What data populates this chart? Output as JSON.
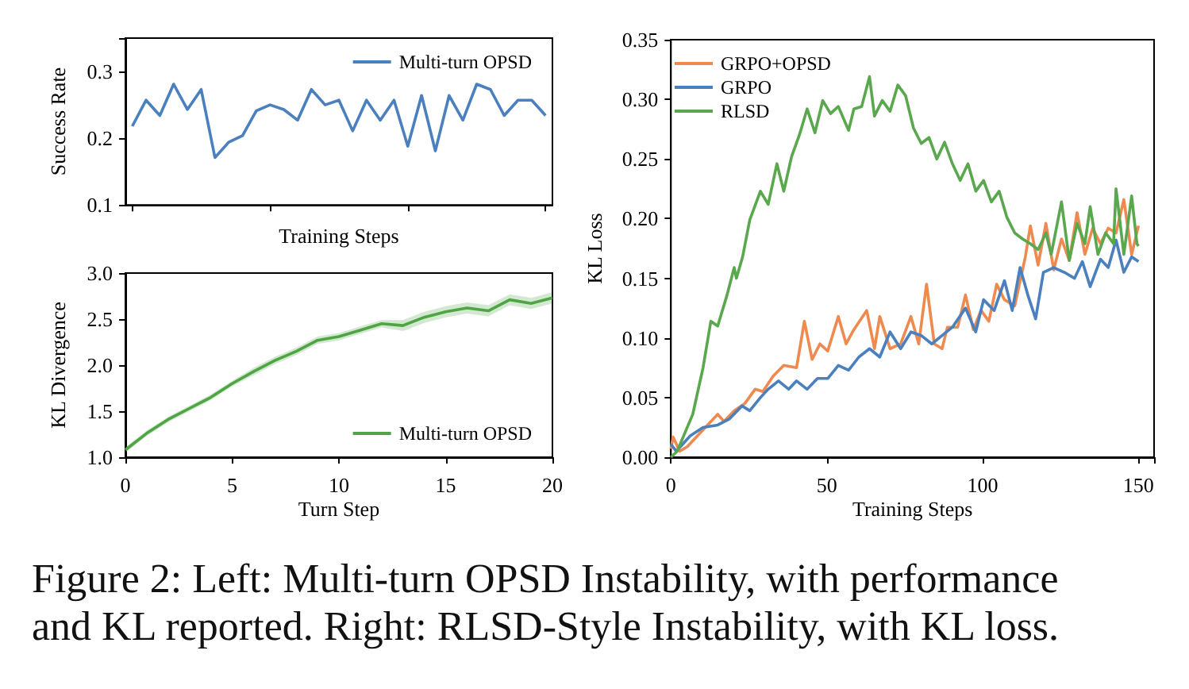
{
  "chart_data": [
    {
      "type": "line",
      "xlabel": "Training Steps",
      "ylabel": "Success Rate",
      "categories": [
        null,
        null,
        null,
        null,
        null,
        null,
        null,
        null,
        null,
        null,
        null,
        null,
        null,
        null,
        null,
        null,
        null,
        null,
        null,
        null,
        null,
        null,
        null,
        null,
        null,
        null,
        null,
        null,
        null,
        null,
        null
      ],
      "series": [
        {
          "name": "Multi-turn OPSD",
          "color": "#4a80bd",
          "values": [
            0.218,
            0.257,
            0.234,
            0.281,
            0.243,
            0.273,
            0.171,
            0.194,
            0.204,
            0.241,
            0.25,
            0.243,
            0.227,
            0.273,
            0.25,
            0.257,
            0.211,
            0.257,
            0.227,
            0.257,
            0.188,
            0.264,
            0.181,
            0.264,
            0.227,
            0.281,
            0.273,
            0.234,
            0.257,
            0.257,
            0.234
          ]
        }
      ],
      "ylim": [
        0.1,
        0.35
      ],
      "yticks": [
        0.1,
        0.2,
        0.3
      ],
      "legend": "top right"
    },
    {
      "type": "line",
      "xlabel": "Turn Step",
      "ylabel": "KL Divergence",
      "x": [
        0,
        1,
        2,
        3,
        4,
        5,
        6,
        7,
        8,
        9,
        10,
        11,
        12,
        13,
        14,
        15,
        16,
        17,
        18,
        19,
        20
      ],
      "series": [
        {
          "name": "Multi-turn OPSD",
          "color": "#4fa544",
          "values": [
            1.08,
            1.26,
            1.41,
            1.53,
            1.65,
            1.8,
            1.93,
            2.05,
            2.15,
            2.27,
            2.31,
            2.38,
            2.45,
            2.43,
            2.52,
            2.58,
            2.62,
            2.59,
            2.71,
            2.67,
            2.73
          ],
          "lower": [
            1.05,
            1.23,
            1.38,
            1.5,
            1.62,
            1.77,
            1.89,
            2.01,
            2.11,
            2.23,
            2.27,
            2.34,
            2.41,
            2.37,
            2.46,
            2.52,
            2.56,
            2.53,
            2.65,
            2.61,
            2.67
          ],
          "upper": [
            1.11,
            1.29,
            1.44,
            1.56,
            1.68,
            1.83,
            1.97,
            2.09,
            2.19,
            2.31,
            2.35,
            2.42,
            2.49,
            2.49,
            2.58,
            2.64,
            2.68,
            2.65,
            2.77,
            2.73,
            2.79
          ]
        }
      ],
      "xlim": [
        0,
        20
      ],
      "xticks": [
        0,
        5,
        10,
        15,
        20
      ],
      "ylim": [
        1,
        3
      ],
      "yticks": [
        {
          "value": 1,
          "label": "1.0"
        },
        1.5,
        {
          "value": 2,
          "label": "2.0"
        },
        2.5,
        {
          "value": 3,
          "label": "3.0"
        }
      ],
      "legend": "bottom right"
    },
    {
      "type": "line",
      "xlabel": "Training Steps",
      "ylabel": "KL Loss",
      "series": [
        {
          "name": "GRPO+OPSD",
          "color": "#ee8a4f",
          "x": [
            0,
            0.7,
            2.8,
            5.3,
            10.3,
            15,
            17,
            20.3,
            23.7,
            27,
            29.5,
            32.8,
            36.2,
            40.3,
            42.8,
            45.3,
            47.8,
            50.3,
            53.7,
            56.2,
            58.7,
            62.8,
            65.3,
            67,
            70.3,
            73.7,
            77,
            79.5,
            82,
            84.5,
            87,
            88.7,
            92,
            94.5,
            97,
            99.5,
            102,
            104.5,
            107,
            110.3,
            113.7,
            115.3,
            117.8,
            120.3,
            122.8,
            125.3,
            127.8,
            130.3,
            132.8,
            135.3,
            137.8,
            140.3,
            142.8,
            145.3,
            147.8,
            150
          ],
          "values": [
            0.007,
            0.017,
            0.005,
            0.009,
            0.023,
            0.036,
            0.03,
            0.039,
            0.045,
            0.057,
            0.055,
            0.068,
            0.077,
            0.075,
            0.114,
            0.082,
            0.095,
            0.089,
            0.118,
            0.095,
            0.107,
            0.123,
            0.091,
            0.118,
            0.091,
            0.095,
            0.118,
            0.095,
            0.145,
            0.095,
            0.091,
            0.109,
            0.109,
            0.136,
            0.107,
            0.123,
            0.114,
            0.145,
            0.132,
            0.127,
            0.168,
            0.194,
            0.161,
            0.196,
            0.157,
            0.183,
            0.165,
            0.205,
            0.17,
            0.192,
            0.179,
            0.192,
            0.188,
            0.216,
            0.17,
            0.194
          ]
        },
        {
          "name": "GRPO",
          "color": "#4a80bd",
          "x": [
            0,
            1.7,
            6.2,
            10.3,
            15,
            18.7,
            22.8,
            25.3,
            28.7,
            31.2,
            34.5,
            37.8,
            40.3,
            43.7,
            47,
            50.3,
            53.7,
            57,
            60.3,
            63.7,
            67,
            70.3,
            73.7,
            77,
            80.3,
            83.7,
            87,
            90.3,
            94.5,
            97.8,
            100.3,
            103.7,
            107,
            109.5,
            112,
            114.5,
            117,
            119.5,
            122.8,
            126.2,
            129.5,
            132,
            134.5,
            137.8,
            140.3,
            142.8,
            145.3,
            147.8,
            150
          ],
          "values": [
            0.011,
            0.005,
            0.018,
            0.025,
            0.027,
            0.032,
            0.043,
            0.039,
            0.05,
            0.057,
            0.064,
            0.057,
            0.064,
            0.057,
            0.066,
            0.066,
            0.077,
            0.073,
            0.084,
            0.091,
            0.084,
            0.105,
            0.091,
            0.105,
            0.102,
            0.095,
            0.102,
            0.109,
            0.125,
            0.105,
            0.132,
            0.123,
            0.148,
            0.123,
            0.159,
            0.136,
            0.116,
            0.155,
            0.159,
            0.155,
            0.15,
            0.164,
            0.143,
            0.166,
            0.159,
            0.182,
            0.155,
            0.168,
            0.164
          ]
        },
        {
          "name": "RLSD",
          "color": "#5aa84d",
          "x": [
            0,
            2,
            7,
            10.3,
            12.8,
            15,
            18,
            20.3,
            21,
            23,
            25.3,
            28.7,
            31.2,
            34,
            36.2,
            38.7,
            41.2,
            43.7,
            46.2,
            48.7,
            51.2,
            53.7,
            57,
            58.7,
            61.2,
            63.7,
            65.3,
            67.8,
            70.3,
            72.8,
            75.3,
            77.8,
            80.3,
            82.8,
            85.3,
            87.8,
            90.3,
            92.8,
            95.3,
            97.8,
            100.3,
            102.8,
            105.3,
            107.8,
            110.3,
            112.8,
            115.3,
            117.8,
            120.3,
            122,
            125.3,
            127.8,
            130.3,
            132.8,
            134.5,
            137,
            139.5,
            142,
            142.8,
            145.3,
            147.8,
            149.5,
            150
          ],
          "values": [
            0,
            0.005,
            0.036,
            0.075,
            0.114,
            0.11,
            0.136,
            0.159,
            0.15,
            0.168,
            0.199,
            0.223,
            0.212,
            0.246,
            0.223,
            0.252,
            0.27,
            0.292,
            0.272,
            0.299,
            0.288,
            0.294,
            0.274,
            0.292,
            0.294,
            0.319,
            0.286,
            0.299,
            0.29,
            0.312,
            0.303,
            0.276,
            0.263,
            0.268,
            0.25,
            0.264,
            0.246,
            0.232,
            0.246,
            0.223,
            0.232,
            0.214,
            0.223,
            0.201,
            0.188,
            0.183,
            0.179,
            0.174,
            0.188,
            0.17,
            0.214,
            0.165,
            0.196,
            0.179,
            0.21,
            0.17,
            0.188,
            0.179,
            0.225,
            0.17,
            0.219,
            0.179,
            0.177
          ]
        }
      ],
      "xlim": [
        0,
        155
      ],
      "xticks": [
        0,
        50,
        100,
        150
      ],
      "ylim": [
        0,
        0.35
      ],
      "yticks": [
        {
          "value": 0,
          "label": "0.00"
        },
        {
          "value": 0.05,
          "label": "0.05"
        },
        {
          "value": 0.1,
          "label": "0.10"
        },
        {
          "value": 0.15,
          "label": "0.15"
        },
        {
          "value": 0.2,
          "label": "0.20"
        },
        {
          "value": 0.25,
          "label": "0.25"
        },
        {
          "value": 0.3,
          "label": "0.30"
        },
        {
          "value": 0.35,
          "label": "0.35"
        }
      ],
      "legend": "top left",
      "annotations": [
        "Figure 2: Left: Multi-turn OPSD Instability, with performance and KL reported. Right: RLSD-Style Instability, with KL loss."
      ]
    }
  ]
}
